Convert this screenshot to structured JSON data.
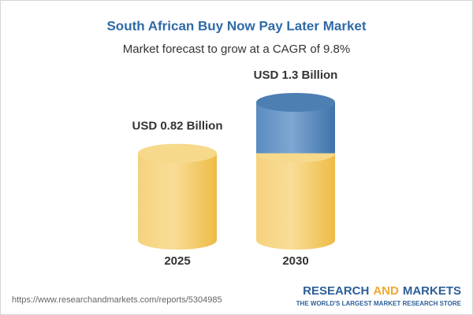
{
  "chart_data": {
    "type": "cylinder",
    "title": "South African Buy Now Pay Later Market",
    "subtitle": "Market forecast to grow at a CAGR of 9.8%",
    "categories": [
      "2025",
      "2030"
    ],
    "values": [
      0.82,
      1.3
    ],
    "value_labels": [
      "USD 0.82 Billion",
      "USD 1.3 Billion"
    ],
    "colors": [
      "#f3c356",
      "#4a7fb6"
    ]
  },
  "footer": {
    "source": "https://www.researchandmarkets.com/reports/5304985",
    "brand_parts": [
      "RESEARCH",
      "AND",
      "MARKETS"
    ],
    "tagline": "THE WORLD'S LARGEST MARKET RESEARCH STORE"
  }
}
